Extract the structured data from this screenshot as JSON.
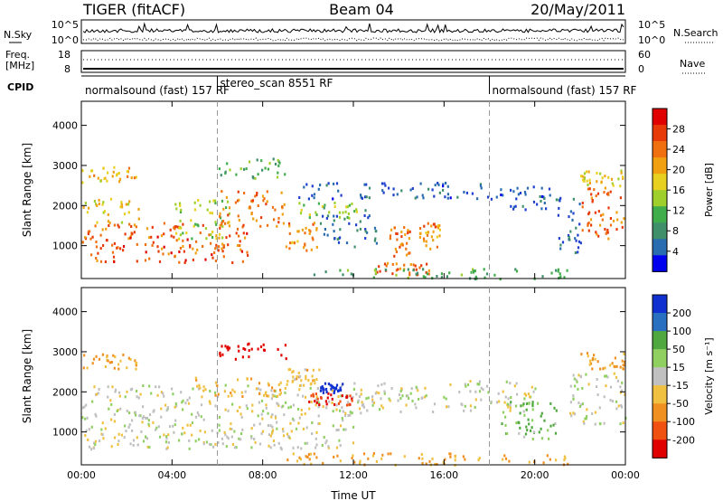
{
  "header": {
    "title": "TIGER (fitACF)",
    "beam": "Beam 04",
    "date": "20/May/2011"
  },
  "top_panels": {
    "nsky_label": "N.Sky",
    "nsky_ticks": [
      "10^5",
      "10^0"
    ],
    "nsearch_label": "N.Search",
    "nsearch_ticks": [
      "10^5",
      "10^0"
    ],
    "freq_label_1": "Freq.",
    "freq_label_2": "[MHz]",
    "freq_ticks": [
      "18",
      "8"
    ],
    "nave_label": "Nave",
    "nave_ticks": [
      "60",
      "0"
    ],
    "cpid_label": "CPID",
    "cpid_segments": [
      {
        "text": "normalsound (fast) 157 RF",
        "start": 0,
        "end": 6
      },
      {
        "text": "stereo_scan 8551 RF",
        "start": 6,
        "end": 18
      },
      {
        "text": "normalsound (fast) 157 RF",
        "start": 18,
        "end": 24
      }
    ]
  },
  "chart_data": [
    {
      "type": "heatmap",
      "title": "",
      "xlabel": "Time UT",
      "ylabel": "Slant Range [km]",
      "xlim": [
        0,
        24
      ],
      "ylim": [
        180,
        4600
      ],
      "x_ticks": [
        "00:00",
        "04:00",
        "08:00",
        "12:00",
        "16:00",
        "20:00",
        "00:00"
      ],
      "y_ticks": [
        "1000",
        "2000",
        "3000",
        "4000"
      ],
      "y_tick_values": [
        1000,
        2000,
        3000,
        4000
      ],
      "colorbar": {
        "label": "Power [dB]",
        "range": [
          0,
          32
        ],
        "ticks": [
          "4",
          "8",
          "12",
          "16",
          "20",
          "24",
          "28"
        ]
      },
      "regions": [
        {
          "t0": 0.0,
          "t1": 7.5,
          "r0": 600,
          "r1": 1600,
          "value": 27
        },
        {
          "t0": 0.0,
          "t1": 2.5,
          "r0": 1600,
          "r1": 2200,
          "value": 20
        },
        {
          "t0": 0.0,
          "t1": 2.5,
          "r0": 2600,
          "r1": 3000,
          "value": 21
        },
        {
          "t0": 4.0,
          "t1": 6.5,
          "r0": 1200,
          "r1": 2200,
          "value": 17
        },
        {
          "t0": 6.0,
          "t1": 9.0,
          "r0": 1500,
          "r1": 2400,
          "value": 25
        },
        {
          "t0": 6.0,
          "t1": 9.0,
          "r0": 2700,
          "r1": 3200,
          "value": 13
        },
        {
          "t0": 9.0,
          "t1": 10.5,
          "r0": 900,
          "r1": 1700,
          "value": 24
        },
        {
          "t0": 9.5,
          "t1": 12.5,
          "r0": 1700,
          "r1": 2100,
          "value": 15
        },
        {
          "t0": 9.5,
          "t1": 18.0,
          "r0": 2200,
          "r1": 2600,
          "value": 5
        },
        {
          "t0": 10.5,
          "t1": 13.0,
          "r0": 1000,
          "r1": 1800,
          "value": 6
        },
        {
          "t0": 13.5,
          "t1": 14.5,
          "r0": 700,
          "r1": 1500,
          "value": 26
        },
        {
          "t0": 14.8,
          "t1": 15.8,
          "r0": 900,
          "r1": 1600,
          "value": 24
        },
        {
          "t0": 13.0,
          "t1": 15.5,
          "r0": 300,
          "r1": 600,
          "value": 26
        },
        {
          "t0": 10.0,
          "t1": 21.5,
          "r0": 200,
          "r1": 450,
          "value": 12
        },
        {
          "t0": 18.0,
          "t1": 21.0,
          "r0": 1900,
          "r1": 2500,
          "value": 5
        },
        {
          "t0": 21.0,
          "t1": 22.0,
          "r0": 800,
          "r1": 2300,
          "value": 6
        },
        {
          "t0": 22.0,
          "t1": 24.0,
          "r0": 1200,
          "r1": 2500,
          "value": 26
        },
        {
          "t0": 22.0,
          "t1": 24.0,
          "r0": 2500,
          "r1": 2900,
          "value": 19
        }
      ]
    },
    {
      "type": "heatmap",
      "title": "",
      "xlabel": "Time UT",
      "ylabel": "Slant Range [km]",
      "xlim": [
        0,
        24
      ],
      "ylim": [
        180,
        4600
      ],
      "x_ticks": [
        "00:00",
        "04:00",
        "08:00",
        "12:00",
        "16:00",
        "20:00",
        "00:00"
      ],
      "y_ticks": [
        "1000",
        "2000",
        "3000",
        "4000"
      ],
      "y_tick_values": [
        1000,
        2000,
        3000,
        4000
      ],
      "colorbar": {
        "label": "Velocity [m s⁻¹]",
        "ticks": [
          "200",
          "100",
          "50",
          "15",
          "-15",
          "-50",
          "-100",
          "-200"
        ]
      },
      "regions": [
        {
          "t0": 0.0,
          "t1": 12.0,
          "r0": 600,
          "r1": 2200,
          "value": 0
        },
        {
          "t0": 0.0,
          "t1": 2.5,
          "r0": 2600,
          "r1": 3000,
          "value": -60
        },
        {
          "t0": 5.0,
          "t1": 9.0,
          "r0": 1900,
          "r1": 2400,
          "value": -40
        },
        {
          "t0": 6.0,
          "t1": 9.0,
          "r0": 2800,
          "r1": 3250,
          "value": -180
        },
        {
          "t0": 9.0,
          "t1": 10.5,
          "r0": 2200,
          "r1": 2600,
          "value": -30
        },
        {
          "t0": 10.0,
          "t1": 12.0,
          "r0": 1700,
          "r1": 2000,
          "value": -160
        },
        {
          "t0": 10.5,
          "t1": 11.5,
          "r0": 2000,
          "r1": 2250,
          "value": 200
        },
        {
          "t0": 12.0,
          "t1": 20.0,
          "r0": 1500,
          "r1": 2300,
          "value": 0
        },
        {
          "t0": 9.0,
          "t1": 21.5,
          "r0": 200,
          "r1": 500,
          "value": -50
        },
        {
          "t0": 18.5,
          "t1": 21.0,
          "r0": 800,
          "r1": 1800,
          "value": 40
        },
        {
          "t0": 21.5,
          "t1": 24.0,
          "r0": 1200,
          "r1": 2500,
          "value": 0
        },
        {
          "t0": 22.0,
          "t1": 24.0,
          "r0": 2600,
          "r1": 3000,
          "value": -60
        }
      ]
    }
  ]
}
